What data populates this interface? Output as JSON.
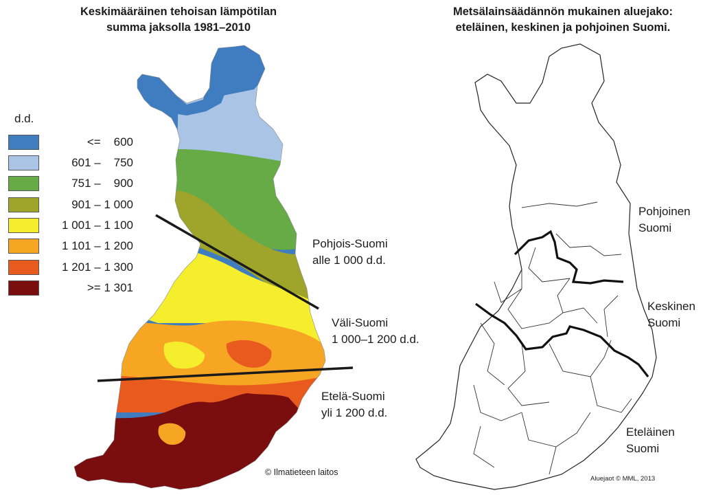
{
  "left_map": {
    "title_lines": [
      "Keskimääräinen tehoisan lämpötilan",
      "summa jaksolla 1981–2010"
    ],
    "legend": {
      "title": "d.d.",
      "items": [
        {
          "label": "<=    600",
          "color": "#3f7dc0"
        },
        {
          "label": "601 –    750",
          "color": "#aac4e6"
        },
        {
          "label": "751 –    900",
          "color": "#67ab47"
        },
        {
          "label": "901 – 1 000",
          "color": "#9ea52a"
        },
        {
          "label": "1 001 – 1 100",
          "color": "#f5ee2d"
        },
        {
          "label": "1 101 – 1 200",
          "color": "#f6a623"
        },
        {
          "label": "1 201 – 1 300",
          "color": "#e95a1f"
        },
        {
          "label": ">= 1 301",
          "color": "#7a0d0d"
        }
      ]
    },
    "zones": {
      "north": [
        "Pohjois-Suomi",
        "alle 1 000 d.d."
      ],
      "middle": [
        "Väli-Suomi",
        "1 000–1 200 d.d."
      ],
      "south": [
        "Etelä-Suomi",
        "yli 1 200 d.d."
      ]
    },
    "credit": "© Ilmatieteen laitos"
  },
  "right_map": {
    "title_lines": [
      "Metsälainsäädännön mukainen aluejako:",
      "eteläinen, keskinen ja pohjoinen Suomi."
    ],
    "regions": {
      "north": [
        "Pohjoinen",
        "Suomi"
      ],
      "middle": [
        "Keskinen",
        "Suomi"
      ],
      "south": [
        "Eteläinen",
        "Suomi"
      ]
    },
    "credit": "Aluejaot © MML, 2013"
  }
}
